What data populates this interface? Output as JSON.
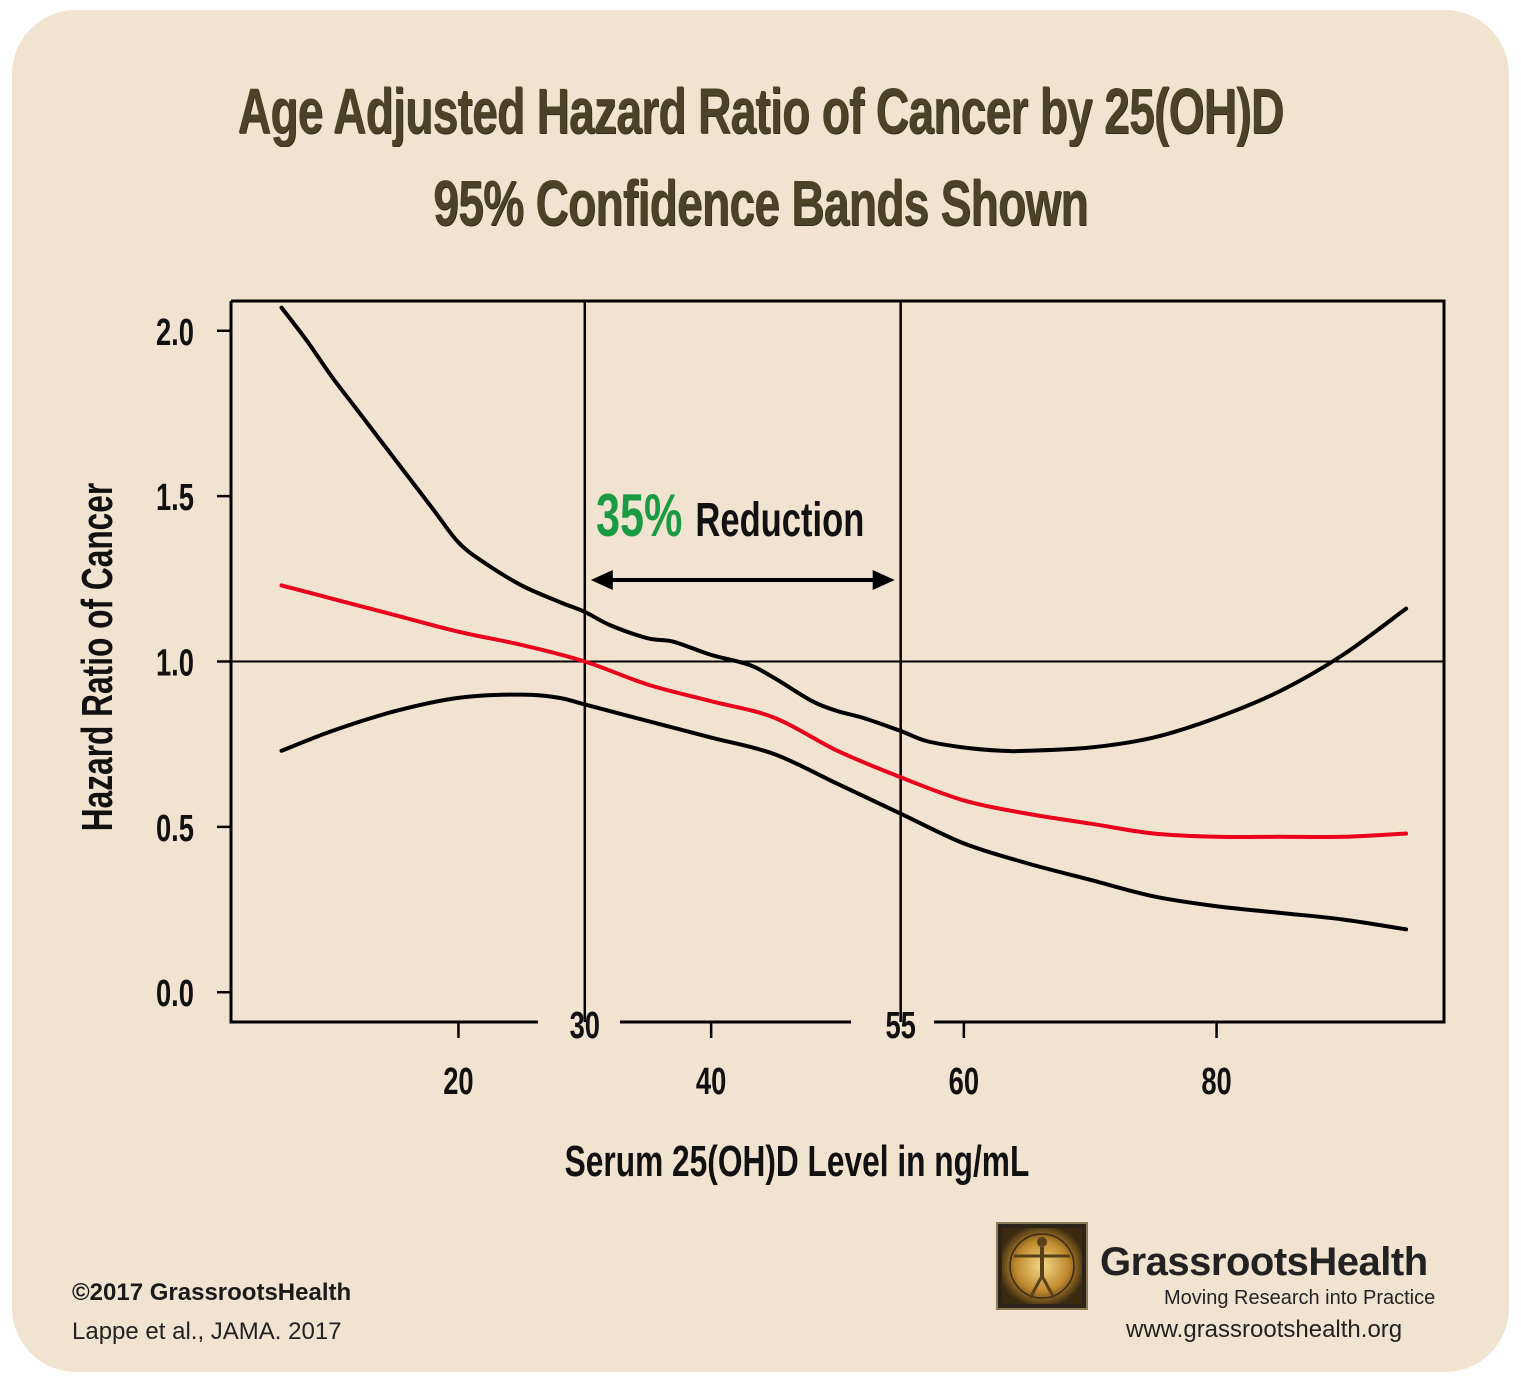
{
  "title_line1": "Age Adjusted Hazard Ratio of Cancer by 25(OH)D",
  "title_line2": "95% Confidence Bands Shown",
  "annotation": {
    "percent": "35%",
    "text": "Reduction"
  },
  "footer": {
    "copyright": "©2017 GrassrootsHealth",
    "citation": "Lappe et al., JAMA. 2017",
    "brand": "GrassrootsHealth",
    "tagline": "Moving Research into Practice",
    "url": "www.grassrootshealth.org"
  },
  "colors": {
    "background": "#f0e4d1",
    "title": "#4a4327",
    "estimate": "#e8001c",
    "bands": "#000000",
    "accent_green": "#1a9a43"
  },
  "chart_data": {
    "type": "line",
    "xlabel": "Serum 25(OH)D Level in ng/mL",
    "ylabel": "Hazard Ratio of Cancer",
    "xlim": [
      2,
      98
    ],
    "ylim": [
      -0.09,
      2.09
    ],
    "x_ticks": [
      "20",
      "40",
      "60",
      "80"
    ],
    "y_ticks": [
      "0.0",
      "0.5",
      "1.0",
      "1.5",
      "2.0"
    ],
    "reference_line_y": 1.0,
    "vertical_markers": [
      {
        "x": 30,
        "label": "30"
      },
      {
        "x": 55,
        "label": "55"
      }
    ],
    "grid": false,
    "series": [
      {
        "role": "upper_band",
        "color": "#000000",
        "x": [
          6,
          8,
          10,
          12,
          15,
          18,
          20,
          22,
          25,
          28,
          30,
          32,
          35,
          37,
          40,
          43,
          45,
          48,
          50,
          52,
          55,
          57,
          60,
          63,
          65,
          70,
          75,
          80,
          85,
          90,
          95
        ],
        "y": [
          2.07,
          1.97,
          1.86,
          1.76,
          1.61,
          1.46,
          1.36,
          1.3,
          1.23,
          1.18,
          1.15,
          1.11,
          1.07,
          1.06,
          1.02,
          0.99,
          0.95,
          0.88,
          0.85,
          0.83,
          0.79,
          0.76,
          0.74,
          0.73,
          0.73,
          0.74,
          0.77,
          0.83,
          0.91,
          1.02,
          1.16
        ]
      },
      {
        "role": "estimate",
        "color": "#e8001c",
        "x": [
          6,
          10,
          15,
          20,
          25,
          30,
          35,
          40,
          45,
          50,
          55,
          60,
          65,
          70,
          75,
          80,
          85,
          90,
          95
        ],
        "y": [
          1.23,
          1.19,
          1.14,
          1.09,
          1.05,
          1.0,
          0.93,
          0.88,
          0.83,
          0.73,
          0.65,
          0.58,
          0.54,
          0.51,
          0.48,
          0.47,
          0.47,
          0.47,
          0.48
        ]
      },
      {
        "role": "lower_band",
        "color": "#000000",
        "x": [
          6,
          10,
          15,
          20,
          25,
          28,
          30,
          35,
          40,
          45,
          50,
          55,
          60,
          65,
          70,
          75,
          80,
          85,
          90,
          95
        ],
        "y": [
          0.73,
          0.79,
          0.85,
          0.89,
          0.9,
          0.89,
          0.87,
          0.82,
          0.77,
          0.72,
          0.63,
          0.54,
          0.45,
          0.39,
          0.34,
          0.29,
          0.26,
          0.24,
          0.22,
          0.19
        ]
      }
    ]
  }
}
